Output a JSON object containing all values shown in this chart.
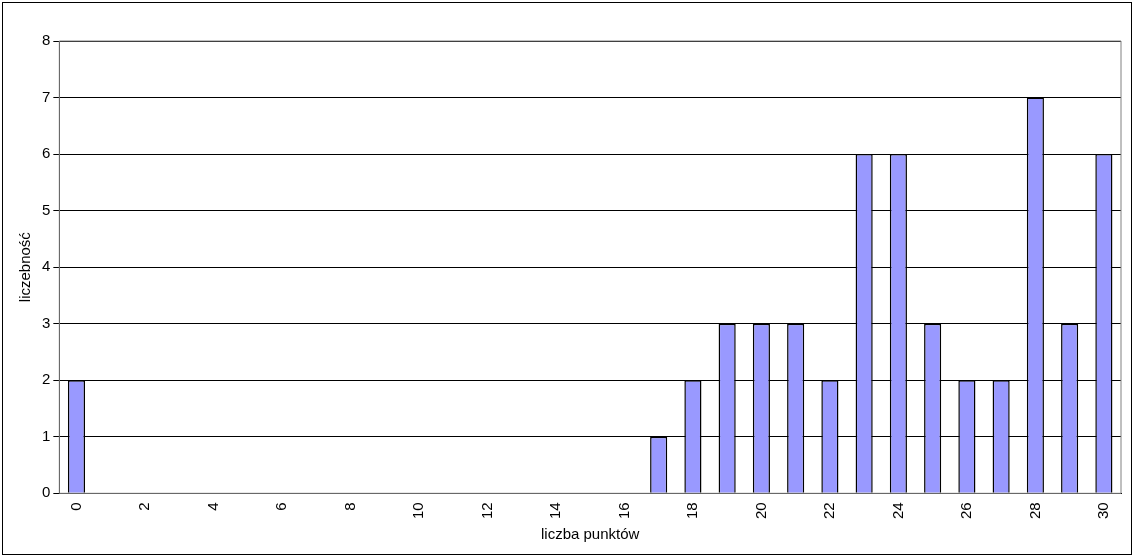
{
  "chart_data": {
    "type": "bar",
    "xlabel": "liczba punktów",
    "ylabel": "liczebność",
    "categories": [
      "0",
      null,
      "2",
      null,
      "4",
      null,
      "6",
      null,
      "8",
      null,
      "10",
      null,
      "12",
      null,
      "14",
      null,
      "16",
      null,
      "18",
      null,
      "20",
      null,
      "22",
      null,
      "24",
      null,
      "26",
      null,
      "28",
      null,
      "30"
    ],
    "values": [
      2,
      0,
      0,
      0,
      0,
      0,
      0,
      0,
      0,
      0,
      0,
      0,
      0,
      0,
      0,
      0,
      0,
      1,
      2,
      3,
      3,
      3,
      2,
      6,
      6,
      3,
      2,
      2,
      7,
      3,
      6
    ],
    "color": "#9999ff",
    "ylim": [
      0,
      8
    ],
    "yticks": [
      0,
      1,
      2,
      3,
      4,
      5,
      6,
      7,
      8
    ],
    "grid": "y"
  }
}
